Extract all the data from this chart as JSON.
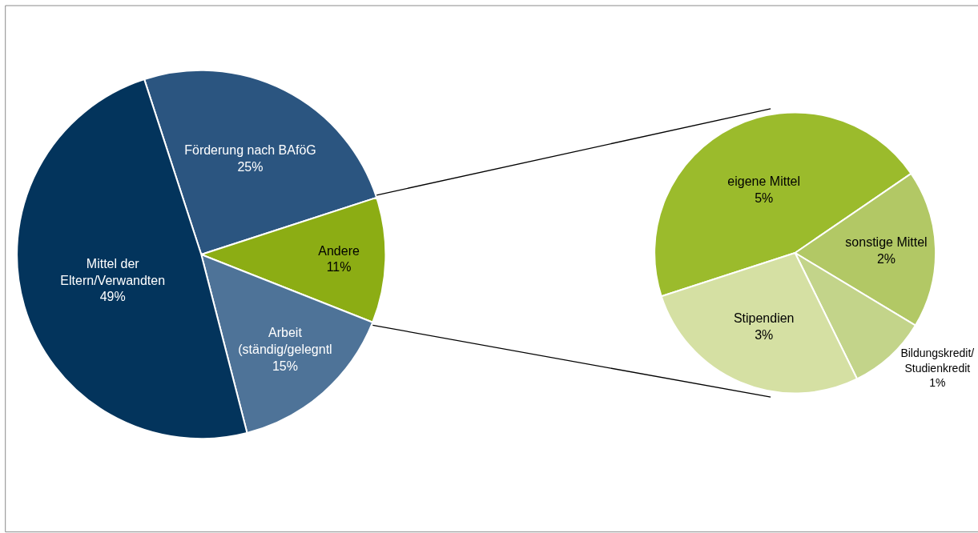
{
  "chart_data": [
    {
      "type": "pie",
      "categories": [
        "Förderung nach BAföG",
        "Andere",
        "Arbeit\n(ständig/gelegntl",
        "Mittel der\nEltern/Verwandten"
      ],
      "values": [
        25,
        11,
        15,
        49
      ],
      "value_labels": [
        "25%",
        "11%",
        "15%",
        "49%"
      ],
      "colors": [
        "#2b5580",
        "#8cad14",
        "#4e7398",
        "#03345c"
      ]
    },
    {
      "type": "pie",
      "categories": [
        "eigene Mittel",
        "sonstige Mittel",
        "Bildungskredit/\nStudienkredit",
        "Stipendien"
      ],
      "values": [
        5,
        2,
        1,
        3
      ],
      "value_labels": [
        "5%",
        "2%",
        "1%",
        "3%"
      ],
      "colors": [
        "#9bbb2c",
        "#b2c865",
        "#c3d48a",
        "#d5e0a3"
      ]
    }
  ]
}
